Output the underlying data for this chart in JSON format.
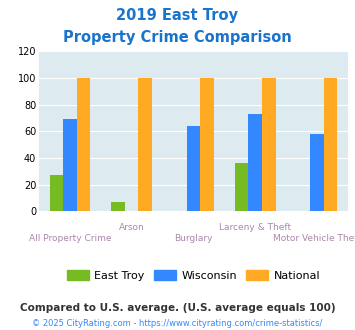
{
  "title_line1": "2019 East Troy",
  "title_line2": "Property Crime Comparison",
  "title_color": "#1874cd",
  "categories": [
    "All Property Crime",
    "Arson",
    "Burglary",
    "Larceny & Theft",
    "Motor Vehicle Theft"
  ],
  "east_troy": [
    27,
    7,
    0,
    36,
    0
  ],
  "wisconsin": [
    69,
    0,
    64,
    73,
    58
  ],
  "national": [
    100,
    100,
    100,
    100,
    100
  ],
  "east_troy_color": "#77bb22",
  "wisconsin_color": "#3388ff",
  "national_color": "#ffaa22",
  "ylim": [
    0,
    120
  ],
  "yticks": [
    0,
    20,
    40,
    60,
    80,
    100,
    120
  ],
  "xlabel_color": "#aa88aa",
  "legend_label_east_troy": "East Troy",
  "legend_label_wisconsin": "Wisconsin",
  "legend_label_national": "National",
  "footnote1": "Compared to U.S. average. (U.S. average equals 100)",
  "footnote2": "© 2025 CityRating.com - https://www.cityrating.com/crime-statistics/",
  "footnote1_color": "#333333",
  "footnote2_color": "#3388ff",
  "bg_color": "#ddeaf0",
  "bar_width": 0.22
}
